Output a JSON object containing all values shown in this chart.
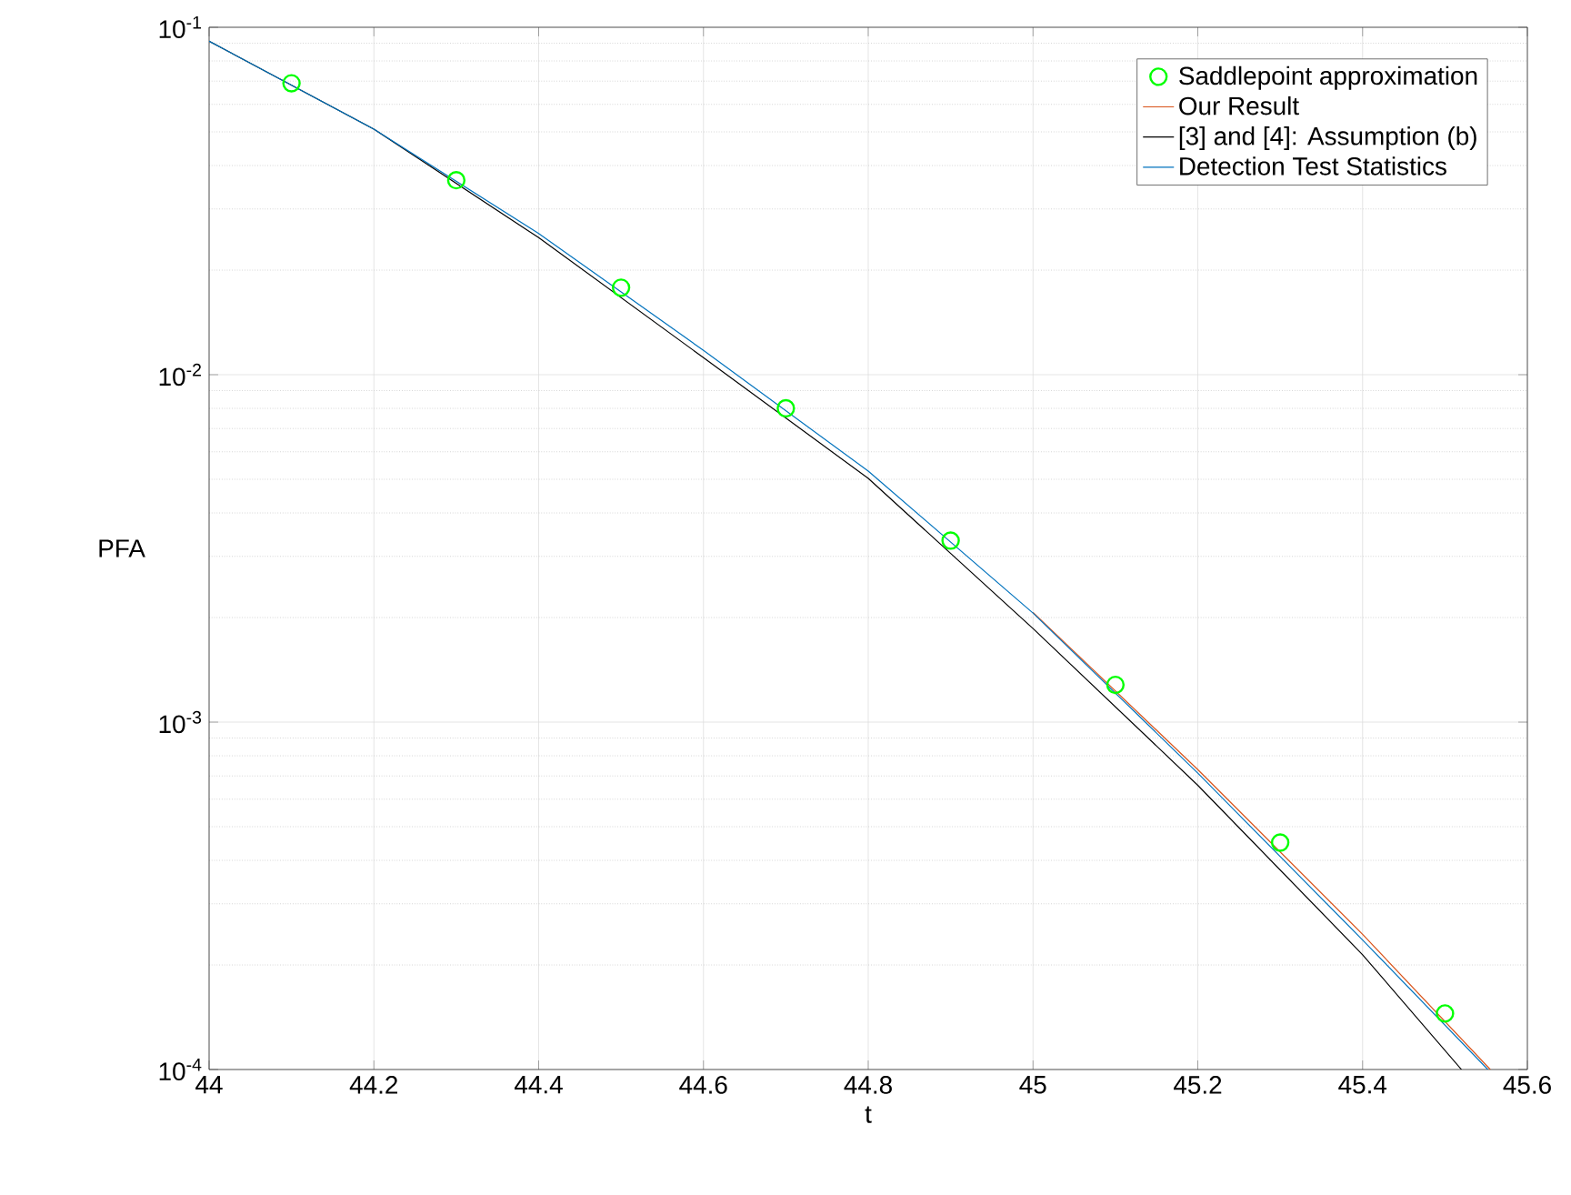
{
  "chart_data": {
    "type": "line",
    "xlabel": "t",
    "ylabel": "PFA",
    "log": "y",
    "grid": true,
    "legend": "top right",
    "xlim": [
      44,
      45.6
    ],
    "xticks": [
      44,
      44.2,
      44.4,
      44.6,
      44.8,
      45,
      45.2,
      45.4,
      45.6
    ],
    "ylim": [
      0.0001,
      0.1
    ],
    "yticks": [
      {
        "value": 0.0001,
        "label": "10$^{-4}$"
      },
      {
        "value": 0.001,
        "label": "10$^{-3}$"
      },
      {
        "value": 0.01,
        "label": "10$^{-2}$"
      },
      {
        "value": 0.1,
        "label": "10$^{-1}$"
      }
    ],
    "series": [
      {
        "name": "Saddlepoint approximation",
        "type": "scatter",
        "marker": "circle",
        "color": "#00ff00",
        "x": [
          44.1,
          44.3,
          44.5,
          44.7,
          44.9,
          45.1,
          45.3,
          45.5
        ],
        "values": [
          0.069,
          0.0363,
          0.0178,
          0.008,
          0.00333,
          0.00128,
          0.00045,
          0.000145
        ]
      },
      {
        "name": "Our Result",
        "color": "#d95319",
        "x": [
          45,
          45.2,
          45.4,
          45.555
        ],
        "values": [
          0.00207,
          0.00073,
          0.000245,
          0.0001
        ]
      },
      {
        "name": "[3] and [4]: Assumption (b)",
        "color": "#000000",
        "x": [
          44,
          44.2,
          44.4,
          44.6,
          44.8,
          45,
          45.2,
          45.4,
          45.52
        ],
        "values": [
          0.0912,
          0.0509,
          0.0248,
          0.0112,
          0.00503,
          0.00186,
          0.000658,
          0.000214,
          0.0001
        ]
      },
      {
        "name": "Detection Test Statistics",
        "color": "#0072bd",
        "x": [
          44,
          44.2,
          44.4,
          44.6,
          44.8,
          45,
          45.2,
          45.4,
          45.552
        ],
        "values": [
          0.0912,
          0.0509,
          0.0255,
          0.01175,
          0.00528,
          0.00206,
          0.000713,
          0.000236,
          0.0001
        ]
      }
    ]
  }
}
